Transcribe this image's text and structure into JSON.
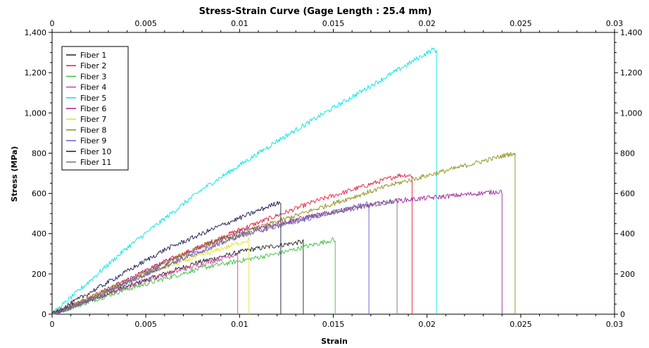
{
  "chart_data": {
    "type": "line",
    "title": "Stress-Strain Curve (Gage Length : 25.4 mm)",
    "xlabel": "Strain",
    "ylabel": "Stress (MPa)",
    "xlim": [
      0,
      0.03
    ],
    "ylim": [
      0,
      1400
    ],
    "x_ticks": [
      0,
      0.005,
      0.01,
      0.015,
      0.02,
      0.025,
      0.03
    ],
    "x_tick_labels": [
      "0",
      "0.005",
      "0.01",
      "0.015",
      "0.02",
      "0.025",
      "0.03"
    ],
    "y_ticks": [
      0,
      200,
      400,
      600,
      800,
      1000,
      1200,
      1400
    ],
    "y_tick_labels": [
      "0",
      "200",
      "400",
      "600",
      "800",
      "1,000",
      "1,200",
      "1,400"
    ],
    "grid": false,
    "legend_position": "top-left",
    "series": [
      {
        "name": "Fiber 1",
        "color": "#222222",
        "points": [
          [
            0,
            0
          ],
          [
            0.0035,
            120
          ],
          [
            0.0075,
            250
          ],
          [
            0.0105,
            320
          ],
          [
            0.0134,
            360
          ],
          [
            0.0134,
            0
          ]
        ]
      },
      {
        "name": "Fiber 2",
        "color": "#e0203a",
        "points": [
          [
            0,
            0
          ],
          [
            0.002,
            80
          ],
          [
            0.006,
            260
          ],
          [
            0.01,
            420
          ],
          [
            0.014,
            560
          ],
          [
            0.0185,
            690
          ],
          [
            0.0192,
            690
          ],
          [
            0.0192,
            0
          ]
        ]
      },
      {
        "name": "Fiber 3",
        "color": "#40c040",
        "points": [
          [
            0,
            0
          ],
          [
            0.0035,
            110
          ],
          [
            0.008,
            230
          ],
          [
            0.012,
            300
          ],
          [
            0.015,
            370
          ],
          [
            0.0151,
            360
          ],
          [
            0.0151,
            0
          ]
        ]
      },
      {
        "name": "Fiber 4",
        "color": "#d040a0",
        "points": [
          [
            0,
            0
          ],
          [
            0.002,
            70
          ],
          [
            0.005,
            170
          ],
          [
            0.0099,
            300
          ],
          [
            0.0099,
            0
          ]
        ]
      },
      {
        "name": "Fiber 5",
        "color": "#00e5e5",
        "points": [
          [
            0,
            0
          ],
          [
            0.004,
            330
          ],
          [
            0.008,
            620
          ],
          [
            0.012,
            860
          ],
          [
            0.016,
            1080
          ],
          [
            0.0204,
            1320
          ],
          [
            0.0205,
            1300
          ],
          [
            0.0205,
            0
          ]
        ]
      },
      {
        "name": "Fiber 6",
        "color": "#9d1e9a",
        "points": [
          [
            0,
            0
          ],
          [
            0.002,
            80
          ],
          [
            0.006,
            260
          ],
          [
            0.01,
            410
          ],
          [
            0.014,
            490
          ],
          [
            0.018,
            560
          ],
          [
            0.0239,
            610
          ],
          [
            0.024,
            610
          ],
          [
            0.024,
            0
          ]
        ]
      },
      {
        "name": "Fiber 7",
        "color": "#e8e030",
        "points": [
          [
            0,
            0
          ],
          [
            0.002,
            80
          ],
          [
            0.005,
            200
          ],
          [
            0.0105,
            370
          ],
          [
            0.0105,
            0
          ]
        ]
      },
      {
        "name": "Fiber 8",
        "color": "#8c8c1a",
        "points": [
          [
            0,
            0
          ],
          [
            0.003,
            120
          ],
          [
            0.008,
            340
          ],
          [
            0.013,
            490
          ],
          [
            0.018,
            640
          ],
          [
            0.0246,
            800
          ],
          [
            0.0247,
            790
          ],
          [
            0.0247,
            0
          ]
        ]
      },
      {
        "name": "Fiber 9",
        "color": "#6a5acd",
        "points": [
          [
            0,
            0
          ],
          [
            0.002,
            70
          ],
          [
            0.006,
            240
          ],
          [
            0.01,
            390
          ],
          [
            0.0169,
            550
          ],
          [
            0.0169,
            0
          ]
        ]
      },
      {
        "name": "Fiber 10",
        "color": "#1a1a50",
        "points": [
          [
            0,
            0
          ],
          [
            0.003,
            160
          ],
          [
            0.006,
            320
          ],
          [
            0.009,
            440
          ],
          [
            0.0122,
            560
          ],
          [
            0.0122,
            0
          ]
        ]
      },
      {
        "name": "Fiber 11",
        "color": "#7a6a8a",
        "points": [
          [
            0,
            0
          ],
          [
            0.002,
            75
          ],
          [
            0.006,
            240
          ],
          [
            0.01,
            390
          ],
          [
            0.014,
            490
          ],
          [
            0.0184,
            565
          ],
          [
            0.0184,
            0
          ]
        ]
      }
    ]
  }
}
